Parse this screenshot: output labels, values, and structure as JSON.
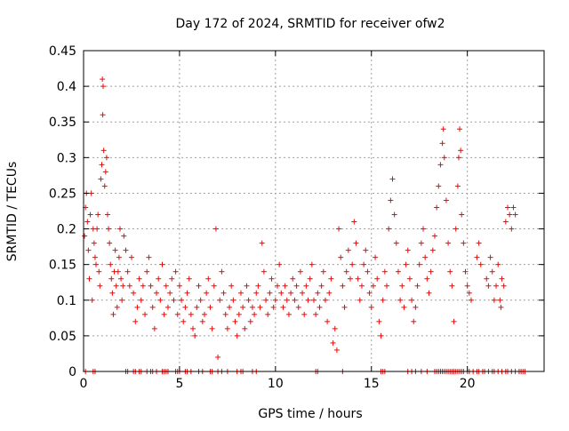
{
  "chart_data": {
    "type": "scatter",
    "title": "Day 172 of 2024, SRMTID for receiver ofw2",
    "xlabel": "GPS time / hours",
    "ylabel": "SRMTID / TECUs",
    "xlim": [
      0,
      24
    ],
    "ylim": [
      0,
      0.45
    ],
    "x_ticks": [
      0,
      5,
      10,
      15,
      20
    ],
    "x_tick_labels": [
      "0",
      "5",
      "10",
      "15",
      "20"
    ],
    "y_ticks": [
      0,
      0.05,
      0.1,
      0.15,
      0.2,
      0.25,
      0.3,
      0.35,
      0.4,
      0.45
    ],
    "y_tick_labels": [
      "0",
      "0.05",
      "0.1",
      "0.15",
      "0.2",
      "0.25",
      "0.3",
      "0.35",
      "0.4",
      "0.45"
    ],
    "grid": true,
    "marker": "+",
    "marker_color": "#ff0000",
    "series": [
      {
        "name": "SRMTID",
        "points": [
          [
            0.05,
            0.19
          ],
          [
            0.1,
            0.23
          ],
          [
            0.15,
            0.25
          ],
          [
            0.2,
            0.21
          ],
          [
            0.25,
            0.17
          ],
          [
            0.3,
            0.13
          ],
          [
            0.35,
            0.22
          ],
          [
            0.4,
            0.25
          ],
          [
            0.45,
            0.1
          ],
          [
            0.5,
            0.2
          ],
          [
            0.55,
            0.18
          ],
          [
            0.6,
            0.16
          ],
          [
            0.65,
            0.15
          ],
          [
            0.7,
            0.2
          ],
          [
            0.75,
            0.22
          ],
          [
            0.8,
            0.14
          ],
          [
            0.85,
            0.12
          ],
          [
            0.9,
            0.27
          ],
          [
            0.95,
            0.29
          ],
          [
            0.98,
            0.41
          ],
          [
            1.0,
            0.36
          ],
          [
            1.02,
            0.4
          ],
          [
            1.05,
            0.31
          ],
          [
            1.1,
            0.26
          ],
          [
            1.15,
            0.28
          ],
          [
            1.2,
            0.3
          ],
          [
            1.25,
            0.22
          ],
          [
            1.3,
            0.2
          ],
          [
            1.35,
            0.18
          ],
          [
            1.4,
            0.15
          ],
          [
            1.45,
            0.13
          ],
          [
            1.5,
            0.11
          ],
          [
            1.55,
            0.08
          ],
          [
            1.6,
            0.14
          ],
          [
            1.65,
            0.17
          ],
          [
            1.7,
            0.12
          ],
          [
            1.75,
            0.09
          ],
          [
            1.8,
            0.14
          ],
          [
            1.85,
            0.16
          ],
          [
            1.9,
            0.2
          ],
          [
            1.95,
            0.13
          ],
          [
            2.0,
            0.1
          ],
          [
            2.05,
            0.12
          ],
          [
            2.1,
            0.19
          ],
          [
            2.2,
            0.17
          ],
          [
            2.3,
            0.14
          ],
          [
            2.4,
            0.12
          ],
          [
            2.5,
            0.16
          ],
          [
            2.6,
            0.11
          ],
          [
            2.7,
            0.07
          ],
          [
            2.8,
            0.09
          ],
          [
            2.9,
            0.13
          ],
          [
            3.0,
            0.1
          ],
          [
            3.1,
            0.12
          ],
          [
            3.2,
            0.08
          ],
          [
            3.3,
            0.14
          ],
          [
            3.4,
            0.16
          ],
          [
            3.5,
            0.12
          ],
          [
            3.6,
            0.09
          ],
          [
            3.7,
            0.06
          ],
          [
            3.8,
            0.11
          ],
          [
            3.9,
            0.13
          ],
          [
            4.0,
            0.1
          ],
          [
            4.1,
            0.15
          ],
          [
            4.2,
            0.08
          ],
          [
            4.3,
            0.12
          ],
          [
            4.4,
            0.09
          ],
          [
            4.5,
            0.11
          ],
          [
            4.6,
            0.13
          ],
          [
            4.7,
            0.1
          ],
          [
            4.8,
            0.14
          ],
          [
            4.9,
            0.08
          ],
          [
            5.0,
            0.12
          ],
          [
            5.1,
            0.1
          ],
          [
            5.2,
            0.07
          ],
          [
            5.3,
            0.09
          ],
          [
            5.4,
            0.11
          ],
          [
            5.5,
            0.13
          ],
          [
            5.6,
            0.08
          ],
          [
            5.7,
            0.06
          ],
          [
            5.8,
            0.05
          ],
          [
            5.9,
            0.09
          ],
          [
            6.0,
            0.12
          ],
          [
            6.1,
            0.1
          ],
          [
            6.2,
            0.07
          ],
          [
            6.3,
            0.08
          ],
          [
            6.4,
            0.11
          ],
          [
            6.5,
            0.13
          ],
          [
            6.6,
            0.09
          ],
          [
            6.7,
            0.06
          ],
          [
            6.8,
            0.12
          ],
          [
            6.9,
            0.2
          ],
          [
            7.0,
            0.02
          ],
          [
            7.1,
            0.1
          ],
          [
            7.2,
            0.14
          ],
          [
            7.3,
            0.11
          ],
          [
            7.4,
            0.08
          ],
          [
            7.5,
            0.06
          ],
          [
            7.6,
            0.09
          ],
          [
            7.7,
            0.12
          ],
          [
            7.8,
            0.1
          ],
          [
            7.9,
            0.07
          ],
          [
            8.0,
            0.05
          ],
          [
            8.1,
            0.08
          ],
          [
            8.2,
            0.11
          ],
          [
            8.3,
            0.09
          ],
          [
            8.4,
            0.06
          ],
          [
            8.5,
            0.12
          ],
          [
            8.6,
            0.1
          ],
          [
            8.7,
            0.07
          ],
          [
            8.8,
            0.09
          ],
          [
            8.9,
            0.08
          ],
          [
            9.0,
            0.11
          ],
          [
            9.1,
            0.12
          ],
          [
            9.2,
            0.09
          ],
          [
            9.3,
            0.18
          ],
          [
            9.4,
            0.14
          ],
          [
            9.5,
            0.1
          ],
          [
            9.6,
            0.08
          ],
          [
            9.7,
            0.11
          ],
          [
            9.8,
            0.13
          ],
          [
            9.9,
            0.09
          ],
          [
            10.0,
            0.1
          ],
          [
            10.1,
            0.12
          ],
          [
            10.2,
            0.15
          ],
          [
            10.3,
            0.11
          ],
          [
            10.4,
            0.09
          ],
          [
            10.5,
            0.12
          ],
          [
            10.6,
            0.1
          ],
          [
            10.7,
            0.08
          ],
          [
            10.8,
            0.11
          ],
          [
            10.9,
            0.13
          ],
          [
            11.0,
            0.1
          ],
          [
            11.1,
            0.12
          ],
          [
            11.2,
            0.09
          ],
          [
            11.3,
            0.14
          ],
          [
            11.4,
            0.11
          ],
          [
            11.5,
            0.08
          ],
          [
            11.6,
            0.12
          ],
          [
            11.7,
            0.1
          ],
          [
            11.8,
            0.13
          ],
          [
            11.9,
            0.15
          ],
          [
            12.0,
            0.1
          ],
          [
            12.1,
            0.08
          ],
          [
            12.2,
            0.11
          ],
          [
            12.3,
            0.09
          ],
          [
            12.4,
            0.12
          ],
          [
            12.5,
            0.14
          ],
          [
            12.6,
            0.1
          ],
          [
            12.7,
            0.07
          ],
          [
            12.8,
            0.11
          ],
          [
            12.9,
            0.13
          ],
          [
            13.0,
            0.04
          ],
          [
            13.1,
            0.06
          ],
          [
            13.2,
            0.03
          ],
          [
            13.3,
            0.2
          ],
          [
            13.4,
            0.16
          ],
          [
            13.5,
            0.12
          ],
          [
            13.6,
            0.09
          ],
          [
            13.7,
            0.14
          ],
          [
            13.8,
            0.17
          ],
          [
            13.9,
            0.13
          ],
          [
            14.0,
            0.15
          ],
          [
            14.1,
            0.21
          ],
          [
            14.2,
            0.18
          ],
          [
            14.3,
            0.13
          ],
          [
            14.4,
            0.1
          ],
          [
            14.5,
            0.12
          ],
          [
            14.6,
            0.15
          ],
          [
            14.7,
            0.17
          ],
          [
            14.8,
            0.14
          ],
          [
            14.9,
            0.11
          ],
          [
            15.0,
            0.09
          ],
          [
            15.1,
            0.12
          ],
          [
            15.2,
            0.16
          ],
          [
            15.3,
            0.13
          ],
          [
            15.4,
            0.07
          ],
          [
            15.5,
            0.05
          ],
          [
            15.6,
            0.1
          ],
          [
            15.7,
            0.14
          ],
          [
            15.8,
            0.12
          ],
          [
            15.9,
            0.2
          ],
          [
            16.0,
            0.24
          ],
          [
            16.1,
            0.27
          ],
          [
            16.2,
            0.22
          ],
          [
            16.3,
            0.18
          ],
          [
            16.4,
            0.14
          ],
          [
            16.5,
            0.1
          ],
          [
            16.6,
            0.12
          ],
          [
            16.7,
            0.09
          ],
          [
            16.8,
            0.15
          ],
          [
            16.9,
            0.17
          ],
          [
            17.0,
            0.13
          ],
          [
            17.1,
            0.1
          ],
          [
            17.2,
            0.07
          ],
          [
            17.3,
            0.09
          ],
          [
            17.4,
            0.12
          ],
          [
            17.5,
            0.15
          ],
          [
            17.6,
            0.18
          ],
          [
            17.7,
            0.2
          ],
          [
            17.8,
            0.16
          ],
          [
            17.9,
            0.13
          ],
          [
            18.0,
            0.11
          ],
          [
            18.1,
            0.14
          ],
          [
            18.2,
            0.17
          ],
          [
            18.3,
            0.19
          ],
          [
            18.4,
            0.23
          ],
          [
            18.5,
            0.26
          ],
          [
            18.6,
            0.29
          ],
          [
            18.7,
            0.32
          ],
          [
            18.75,
            0.34
          ],
          [
            18.8,
            0.3
          ],
          [
            18.9,
            0.24
          ],
          [
            19.0,
            0.18
          ],
          [
            19.1,
            0.14
          ],
          [
            19.2,
            0.12
          ],
          [
            19.3,
            0.07
          ],
          [
            19.4,
            0.2
          ],
          [
            19.5,
            0.26
          ],
          [
            19.55,
            0.3
          ],
          [
            19.6,
            0.34
          ],
          [
            19.65,
            0.31
          ],
          [
            19.7,
            0.22
          ],
          [
            19.8,
            0.18
          ],
          [
            19.9,
            0.14
          ],
          [
            20.0,
            0.12
          ],
          [
            20.1,
            0.11
          ],
          [
            20.2,
            0.1
          ],
          [
            20.5,
            0.16
          ],
          [
            20.6,
            0.18
          ],
          [
            20.7,
            0.15
          ],
          [
            21.0,
            0.13
          ],
          [
            21.1,
            0.12
          ],
          [
            21.2,
            0.16
          ],
          [
            21.3,
            0.14
          ],
          [
            21.4,
            0.1
          ],
          [
            21.5,
            0.12
          ],
          [
            21.6,
            0.15
          ],
          [
            21.7,
            0.1
          ],
          [
            21.75,
            0.09
          ],
          [
            21.8,
            0.13
          ],
          [
            21.9,
            0.12
          ],
          [
            22.0,
            0.21
          ],
          [
            22.1,
            0.23
          ],
          [
            22.2,
            0.22
          ],
          [
            22.3,
            0.2
          ],
          [
            22.4,
            0.23
          ],
          [
            22.5,
            0.22
          ]
        ]
      }
    ],
    "zero_points_x": [
      0.1,
      0.5,
      0.6,
      2.2,
      2.3,
      2.6,
      2.7,
      2.9,
      3.0,
      3.3,
      3.5,
      3.6,
      3.8,
      4.1,
      4.2,
      4.3,
      4.4,
      4.8,
      4.9,
      5.0,
      5.3,
      5.4,
      5.6,
      6.0,
      6.2,
      6.6,
      6.7,
      7.0,
      7.2,
      7.5,
      8.0,
      8.2,
      8.3,
      8.8,
      9.0,
      12.1,
      12.2,
      13.5,
      15.5,
      15.6,
      15.7,
      16.9,
      17.1,
      17.3,
      17.6,
      17.9,
      18.3,
      18.4,
      18.5,
      18.6,
      18.7,
      18.8,
      18.9,
      19.0,
      19.1,
      19.2,
      19.3,
      19.4,
      19.5,
      19.6,
      19.7,
      19.8,
      20.0,
      20.1,
      20.3,
      20.5,
      20.6,
      20.8,
      20.9,
      21.1,
      21.3,
      21.4,
      21.6,
      21.8,
      22.0,
      22.1,
      22.3,
      22.5,
      22.7,
      22.8,
      22.9,
      23.0
    ]
  }
}
